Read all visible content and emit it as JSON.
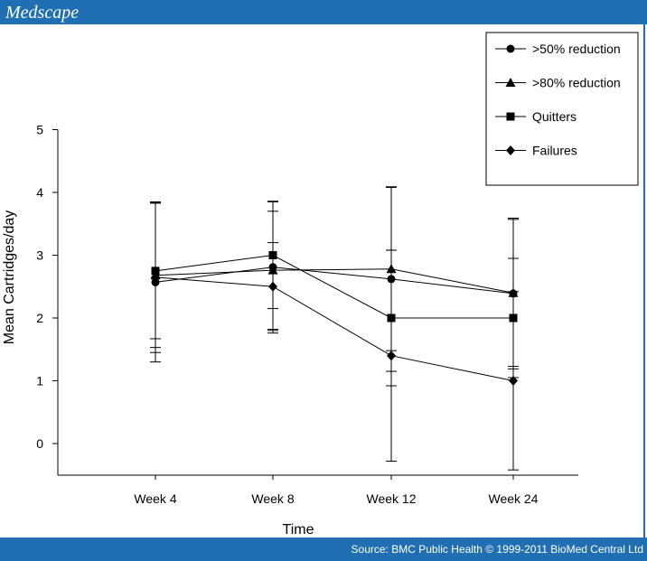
{
  "header": {
    "brand": "Medscape"
  },
  "footer": {
    "source": "Source: BMC Public Health © 1999-2011 BioMed Central Ltd"
  },
  "colors": {
    "bar": "#1f6fb2",
    "ink": "#000000",
    "background": "#ffffff"
  },
  "chart_data": {
    "type": "line",
    "title": "",
    "xlabel": "Time",
    "ylabel": "Mean Cartridges/day",
    "categories": [
      "Week 4",
      "Week 8",
      "Week 12",
      "Week 24"
    ],
    "ylim": [
      -0.5,
      5
    ],
    "yticks": [
      0,
      1,
      2,
      3,
      4,
      5
    ],
    "grid": false,
    "legend_position": "top-right",
    "series": [
      {
        "name": ">50% reduction",
        "marker": "circle",
        "values": [
          2.57,
          2.81,
          2.62,
          2.39
        ],
        "errors": [
          1.27,
          1.05,
          1.47,
          1.2
        ]
      },
      {
        "name": ">80% reduction",
        "marker": "triangle",
        "values": [
          2.68,
          2.76,
          2.78,
          2.4
        ],
        "errors": [
          1.15,
          0.94,
          1.3,
          1.17
        ]
      },
      {
        "name": "Quitters",
        "marker": "square",
        "values": [
          2.75,
          3.0,
          2.0,
          2.0
        ],
        "errors": [
          1.08,
          0.85,
          1.08,
          0.95
        ]
      },
      {
        "name": "Failures",
        "marker": "diamond",
        "values": [
          2.65,
          2.5,
          1.4,
          1.0
        ],
        "errors": [
          1.2,
          0.7,
          1.68,
          1.42
        ]
      }
    ]
  }
}
